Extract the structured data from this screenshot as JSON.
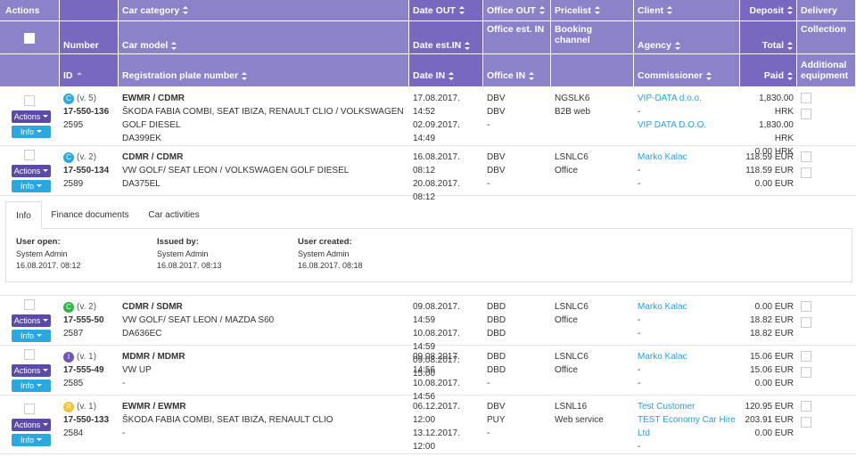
{
  "header": [
    {
      "top": "Actions"
    },
    {
      "mid": "Number",
      "bottom": "ID"
    },
    {
      "top": "Car category",
      "mid": "Car model",
      "bottom": "Registration plate number"
    },
    {
      "top": "Date OUT",
      "mid": "Date est.IN",
      "bottom": "Date IN"
    },
    {
      "top": "Office OUT",
      "mid": "Office est. IN",
      "bottom": "Office IN"
    },
    {
      "top": "Pricelist",
      "mid": "Booking channel"
    },
    {
      "top": "Client",
      "mid": "Agency",
      "bottom": "Commissioner"
    },
    {
      "top": "Deposit",
      "mid": "Total",
      "bottom": "Paid"
    },
    {
      "top": "Delivery",
      "mid": "Collection",
      "bottom": "Additional equipment"
    }
  ],
  "buttons": {
    "actions": "Actions",
    "info": "Info"
  },
  "rows": [
    {
      "badge": "C",
      "badge_color": "#29a9e0",
      "version": "(v. 5)",
      "number": "17-550-136",
      "id": "2595",
      "category": "EWMR / CDMR",
      "model": "ŠKODA FABIA COMBI, SEAT IBIZA, RENAULT CLIO / VOLKSWAGEN GOLF DIESEL",
      "plate": "DA399EK",
      "dates": [
        "17.08.2017. 14:52",
        "02.09.2017. 14:49"
      ],
      "offices": [
        "DBV",
        "DBV",
        "-"
      ],
      "pricelist": "NGSLK6",
      "channel": "B2B web",
      "client": [
        "VIP-DATA d.o.o.",
        "-",
        "VIP DATA D.O.O."
      ],
      "money": [
        "1,830.00 HRK",
        "1,830.00 HRK",
        "0.00 HRK"
      ]
    },
    {
      "badge": "C",
      "badge_color": "#29a9e0",
      "version": "(v. 2)",
      "number": "17-550-134",
      "id": "2589",
      "category": "CDMR / CDMR",
      "model": "VW GOLF/ SEAT LEON / VOLKSWAGEN GOLF DIESEL",
      "plate": "DA375EL",
      "dates": [
        "16.08.2017. 08:12",
        "20.08.2017. 08:12"
      ],
      "offices": [
        "DBV",
        "DBV",
        "-"
      ],
      "pricelist": "LSNLC6",
      "channel": "Office",
      "client": [
        "Marko Kalac",
        "-",
        "-"
      ],
      "money": [
        "118.59 EUR",
        "118.59 EUR",
        "0.00 EUR"
      ]
    },
    {
      "badge": "C",
      "badge_color": "#2fb44a",
      "version": "(v. 2)",
      "number": "17-555-50",
      "id": "2587",
      "category": "CDMR / SDMR",
      "model": "VW GOLF/ SEAT LEON / MAZDA S60",
      "plate": "DA636EC",
      "dates": [
        "09.08.2017. 14:59",
        "10.08.2017. 14:59",
        "09.08.2017. 15:00"
      ],
      "offices": [
        "DBD",
        "DBD",
        "DBD"
      ],
      "pricelist": "LSNLC6",
      "channel": "Office",
      "client": [
        "Marko Kalac",
        "-",
        "-"
      ],
      "money": [
        "0.00 EUR",
        "18.82 EUR",
        "18.82 EUR"
      ]
    },
    {
      "badge": "I",
      "badge_color": "#6f55b5",
      "version": "(v. 1)",
      "number": "17-555-49",
      "id": "2585",
      "category": "MDMR / MDMR",
      "model": "VW UP",
      "plate": "-",
      "dates": [
        "09.08.2017. 14:56",
        "10.08.2017. 14:56"
      ],
      "offices": [
        "DBD",
        "DBD",
        "-"
      ],
      "pricelist": "LSNLC6",
      "channel": "Office",
      "client": [
        "Marko Kalac",
        "-",
        "-"
      ],
      "money": [
        "15.06 EUR",
        "15.06 EUR",
        "0.00 EUR"
      ]
    },
    {
      "badge": "R",
      "badge_color": "#f2c230",
      "version": "(v. 1)",
      "number": "17-550-133",
      "id": "2584",
      "category": "EWMR / EWMR",
      "model": "ŠKODA FABIA COMBI, SEAT IBIZA, RENAULT CLIO",
      "plate": "-",
      "dates": [
        "06.12.2017. 12:00",
        "13.12.2017. 12:00"
      ],
      "offices": [
        "DBV",
        "PUY",
        "-"
      ],
      "pricelist": "LSNL16",
      "channel": "Web service",
      "client": [
        "Test Customer",
        "TEST Economy Car Hire Ltd",
        "-"
      ],
      "money": [
        "120.95 EUR",
        "203.91 EUR",
        "0.00 EUR"
      ]
    }
  ],
  "detail": {
    "tabs": [
      "Info",
      "Finance documents",
      "Car activities"
    ],
    "fields": [
      {
        "label": "User open:",
        "name": "System Admin",
        "date": "16.08.2017. 08:12"
      },
      {
        "label": "Issued by:",
        "name": "System Admin",
        "date": "16.08.2017. 08:13"
      },
      {
        "label": "User created:",
        "name": "System Admin",
        "date": "16.08.2017. 08:18"
      }
    ]
  }
}
